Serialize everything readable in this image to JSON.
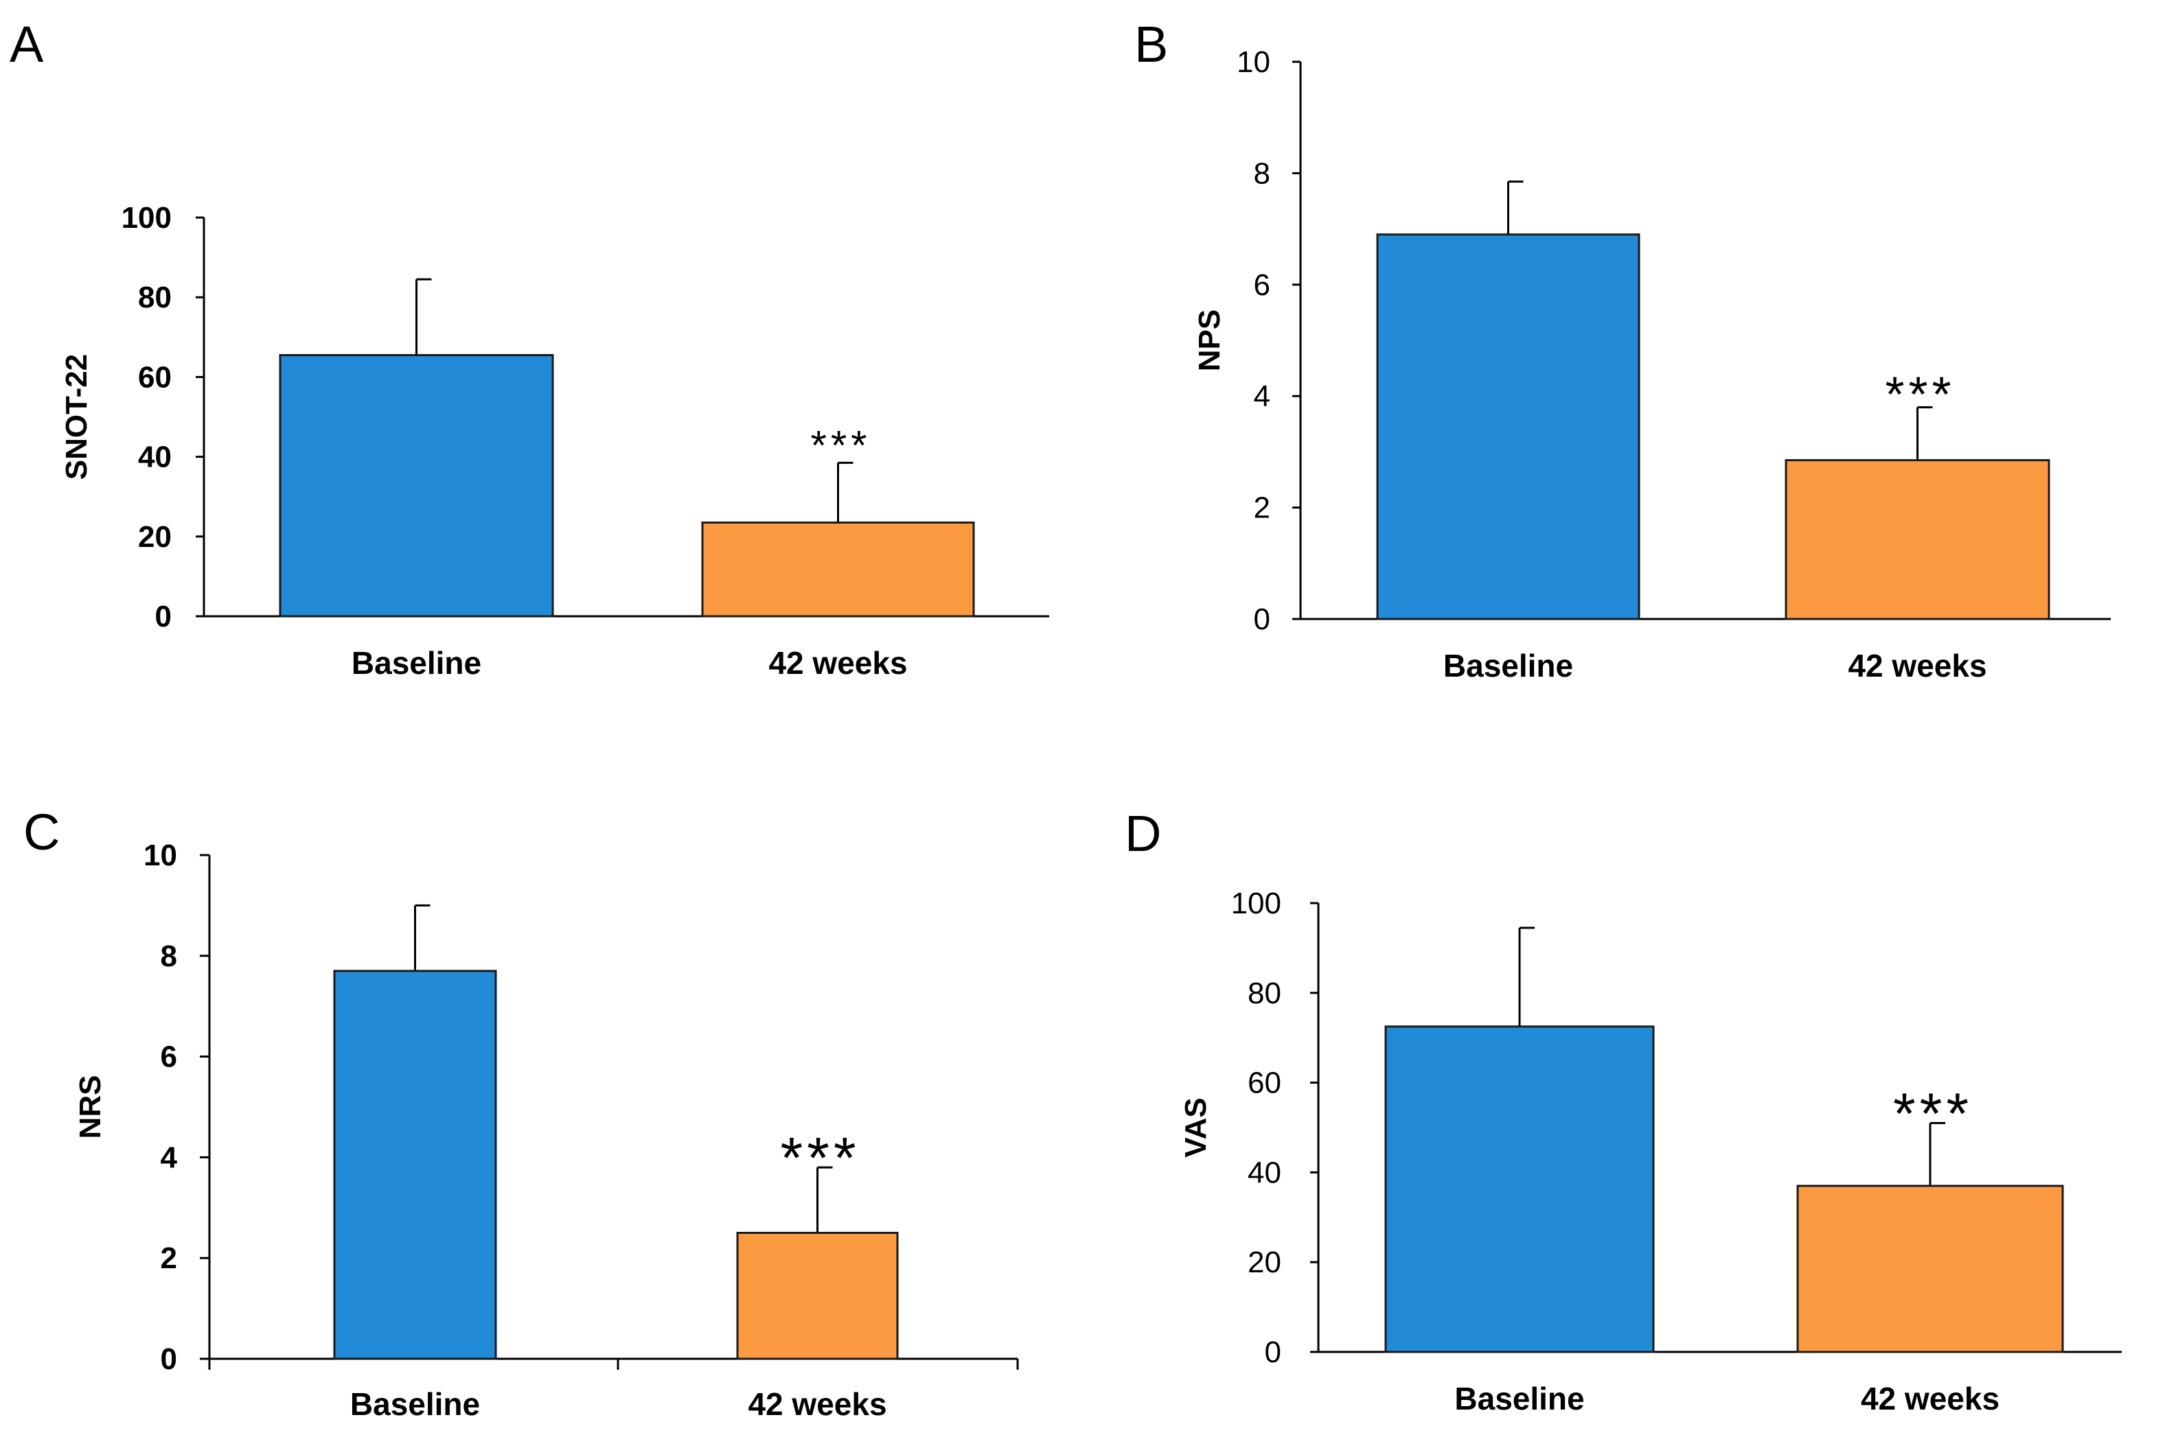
{
  "colors": {
    "baseline": "#228BD7",
    "followup": "#FC9A41",
    "axis": "#000000",
    "bar_border": "#1a1a1a"
  },
  "chart_data": [
    {
      "panel": "A",
      "type": "bar",
      "title": "",
      "xlabel": "",
      "ylabel": "SNOT-22",
      "categories": [
        "Baseline",
        "42 weeks"
      ],
      "values": [
        65.5,
        23.5
      ],
      "error_upper": [
        84.5,
        38.5
      ],
      "significance": [
        "",
        "***"
      ],
      "ylim": [
        0,
        100
      ],
      "yticks": [
        0,
        20,
        40,
        60,
        80,
        100
      ],
      "grid": false,
      "bold_ticks": true
    },
    {
      "panel": "B",
      "type": "bar",
      "title": "",
      "xlabel": "",
      "ylabel": "NPS",
      "categories": [
        "Baseline",
        "42 weeks"
      ],
      "values": [
        6.9,
        2.85
      ],
      "error_upper": [
        7.85,
        3.8
      ],
      "significance": [
        "",
        "***"
      ],
      "ylim": [
        0,
        10
      ],
      "yticks": [
        0,
        2,
        4,
        6,
        8,
        10
      ],
      "grid": false,
      "bold_ticks": false
    },
    {
      "panel": "C",
      "type": "bar",
      "title": "",
      "xlabel": "",
      "ylabel": "NRS",
      "categories": [
        "Baseline",
        "42 weeks"
      ],
      "values": [
        7.7,
        2.5
      ],
      "error_upper": [
        9.0,
        3.8
      ],
      "significance": [
        "",
        "***"
      ],
      "ylim": [
        0,
        10
      ],
      "yticks": [
        0,
        2,
        4,
        6,
        8,
        10
      ],
      "grid": false,
      "bold_ticks": true
    },
    {
      "panel": "D",
      "type": "bar",
      "title": "",
      "xlabel": "",
      "ylabel": "VAS",
      "categories": [
        "Baseline",
        "42 weeks"
      ],
      "values": [
        72.5,
        37
      ],
      "error_upper": [
        94.5,
        51
      ],
      "significance": [
        "",
        "***"
      ],
      "ylim": [
        0,
        100
      ],
      "yticks": [
        0,
        20,
        40,
        60,
        80,
        100
      ],
      "grid": false,
      "bold_ticks": false
    }
  ]
}
